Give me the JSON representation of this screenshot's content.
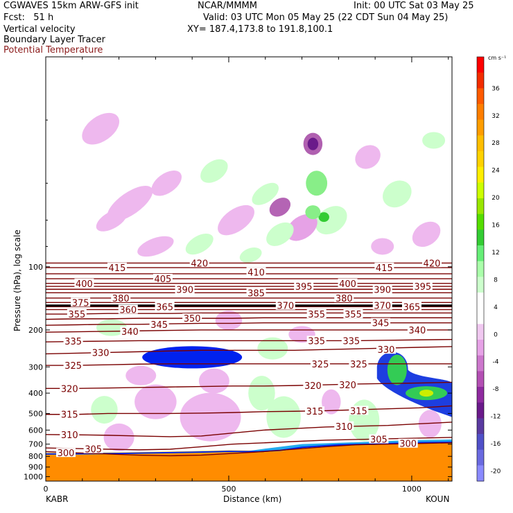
{
  "header": {
    "model": "CGWAVES 15km ARW-GFS init",
    "org": "NCAR/MMMM",
    "init": "Init: 00 UTC Sat 03 May 25",
    "fcst": "Fcst:   51 h",
    "valid": "Valid: 03 UTC Mon 05 May 25 (22 CDT Sun 04 May 25)",
    "field1": "Vertical velocity",
    "field2": "Boundary Layer Tracer",
    "field3": "Potential Temperature",
    "xy": "XY= 187.4,173.8 to 191.8,100.1"
  },
  "colors": {
    "theta_line": "#7a0000",
    "field3_text": "#8b1a1a",
    "tracer_orange": "#ff8c00",
    "tracer_blue": "#0022ee"
  },
  "chart_data": {
    "type": "heatmap",
    "title": "Vertical velocity / Boundary Layer Tracer / Potential Temperature cross-section",
    "xlabel": "Distance (km)",
    "ylabel": "Pressure (hPa), log scale",
    "xlim": [
      0,
      1110
    ],
    "ylim": [
      1050,
      10
    ],
    "y_scale": "log",
    "x_ticks": [
      0,
      500,
      1000
    ],
    "x_tick_labels": [
      "0",
      "500",
      "1000"
    ],
    "y_ticks": [
      100,
      200,
      300,
      400,
      500,
      600,
      700,
      800,
      900,
      1000
    ],
    "y_tick_labels": [
      "100",
      "200",
      "300",
      "400",
      "500",
      "600",
      "700",
      "800",
      "900",
      "1000"
    ],
    "endpoints": {
      "left": "KABR",
      "right": "KOUN"
    },
    "colorbar": {
      "units": "cm s⁻¹",
      "labels": [
        "36",
        "32",
        "28",
        "24",
        "20",
        "16",
        "12",
        "8",
        "4",
        "0",
        "-4",
        "-8",
        "-12",
        "-16",
        "-20"
      ],
      "colors": [
        "#ff0000",
        "#f22c00",
        "#ff5a00",
        "#ff7e00",
        "#ff9d00",
        "#ffbe00",
        "#ffd200",
        "#ffee00",
        "#ccff00",
        "#99e600",
        "#55dd00",
        "#33cc33",
        "#66ee77",
        "#aaffaa",
        "#ccffcc",
        "#ffffff",
        "#ffffff",
        "#f0c8f0",
        "#e6a2e6",
        "#cc77cc",
        "#b34fb3",
        "#8f2a9f",
        "#6a1a8a",
        "#5a3aa0",
        "#5050c8",
        "#6a6ae0",
        "#8a8aff"
      ]
    },
    "theta_contours": [
      {
        "label": "300",
        "p": [
          760,
          770,
          780,
          790,
          795,
          790,
          775,
          760,
          740,
          720,
          705,
          700,
          695,
          690
        ]
      },
      {
        "label": "305",
        "p": [
          730,
          735,
          740,
          745,
          740,
          720,
          700,
          690,
          680,
          670,
          665,
          660,
          655,
          650
        ]
      },
      {
        "label": "310",
        "p": [
          630,
          632,
          635,
          640,
          645,
          640,
          620,
          600,
          590,
          580,
          575,
          570,
          560,
          550
        ]
      },
      {
        "label": "315",
        "p": [
          505,
          505,
          500,
          500,
          500,
          498,
          495,
          490,
          488,
          485,
          480,
          475,
          470,
          460
        ]
      },
      {
        "label": "320",
        "p": [
          380,
          380,
          378,
          376,
          374,
          372,
          370,
          370,
          368,
          365,
          362,
          360,
          358,
          355
        ]
      },
      {
        "label": "325",
        "p": [
          295,
          295,
          293,
          291,
          290,
          290,
          290,
          290,
          290,
          290,
          290,
          290,
          290,
          290
        ]
      },
      {
        "label": "330",
        "p": [
          260,
          258,
          256,
          254,
          252,
          250,
          250,
          250,
          250,
          248,
          246,
          244,
          242,
          240
        ]
      },
      {
        "label": "335",
        "p": [
          228,
          227,
          226,
          225,
          225,
          225,
          225,
          225,
          225,
          225,
          225,
          224,
          223,
          222
        ]
      },
      {
        "label": "340",
        "p": [
          205,
          204,
          203,
          202,
          201,
          200,
          200,
          200,
          200,
          200,
          200,
          200,
          200,
          200
        ]
      },
      {
        "label": "345",
        "p": [
          190,
          189,
          188,
          188,
          187,
          186,
          186,
          185,
          185,
          185,
          185,
          185,
          185,
          185
        ]
      },
      {
        "label": "350",
        "p": [
          178,
          177,
          177,
          176,
          176,
          176,
          176,
          175,
          175,
          175,
          175,
          175,
          175,
          175
        ]
      },
      {
        "label": "355",
        "p": [
          168,
          168,
          167,
          167,
          167,
          166,
          166,
          166,
          166,
          166,
          166,
          166,
          166,
          166
        ]
      },
      {
        "label": "360",
        "p": [
          160,
          160,
          160,
          160,
          160,
          160,
          160,
          160,
          160,
          160,
          160,
          160,
          160,
          160
        ]
      },
      {
        "label": "365",
        "p": [
          155,
          155,
          155,
          155,
          155,
          155,
          155,
          155,
          155,
          155,
          155,
          155,
          155,
          155
        ]
      },
      {
        "label": "370",
        "p": [
          153,
          153,
          153,
          153,
          153,
          153,
          153,
          153,
          153,
          153,
          153,
          153,
          153,
          153
        ]
      },
      {
        "label": "375",
        "p": [
          148,
          148,
          148,
          148,
          148,
          148,
          148,
          148,
          148,
          148,
          148,
          148,
          148,
          148
        ]
      },
      {
        "label": "380",
        "p": [
          141,
          141,
          141,
          141,
          141,
          141,
          141,
          141,
          141,
          141,
          141,
          141,
          141,
          141
        ]
      },
      {
        "label": "385",
        "p": [
          133,
          133,
          133,
          133,
          133,
          133,
          133,
          133,
          133,
          133,
          133,
          133,
          133,
          133
        ]
      },
      {
        "label": "390",
        "p": [
          128,
          128,
          128,
          128,
          128,
          128,
          128,
          128,
          128,
          128,
          128,
          128,
          128,
          128
        ]
      },
      {
        "label": "395",
        "p": [
          124,
          124,
          124,
          124,
          124,
          124,
          124,
          124,
          124,
          124,
          124,
          124,
          124,
          124
        ]
      },
      {
        "label": "400",
        "p": [
          120,
          120,
          120,
          120,
          120,
          120,
          120,
          120,
          120,
          120,
          120,
          120,
          120,
          120
        ]
      },
      {
        "label": "405",
        "p": [
          114,
          114,
          114,
          114,
          114,
          114,
          114,
          114,
          114,
          114,
          114,
          114,
          114,
          114
        ]
      },
      {
        "label": "410",
        "p": [
          108,
          108,
          108,
          108,
          108,
          108,
          108,
          108,
          108,
          108,
          108,
          108,
          108,
          108
        ]
      },
      {
        "label": "415",
        "p": [
          101,
          101,
          101,
          101,
          101,
          101,
          101,
          101,
          101,
          101,
          101,
          101,
          101,
          101
        ]
      },
      {
        "label": "420",
        "p": [
          96,
          96,
          96,
          96,
          96,
          96,
          96,
          96,
          96,
          96,
          96,
          96,
          96,
          96
        ]
      }
    ],
    "theta_x": [
      0,
      85,
      170,
      255,
      340,
      425,
      510,
      595,
      680,
      765,
      850,
      935,
      1020,
      1110
    ],
    "theta_label_positions": [
      {
        "label": "420",
        "x": "420",
        "p": 96
      },
      {
        "label": "420",
        "x": 1055,
        "p": 96
      },
      {
        "label": "415",
        "x": 195,
        "p": 101
      },
      {
        "label": "415",
        "x": 925,
        "p": 101
      },
      {
        "label": "410",
        "x": 575,
        "p": 106
      },
      {
        "label": "405",
        "x": 320,
        "p": 114
      },
      {
        "label": "400",
        "x": 105,
        "p": 120
      },
      {
        "label": "400",
        "x": 825,
        "p": 120
      },
      {
        "label": "395",
        "x": 705,
        "p": 124
      },
      {
        "label": "395",
        "x": 1030,
        "p": 124
      },
      {
        "label": "390",
        "x": 380,
        "p": 128
      },
      {
        "label": "390",
        "x": 920,
        "p": 128
      },
      {
        "label": "385",
        "x": 575,
        "p": 133
      },
      {
        "label": "380",
        "x": 205,
        "p": 141
      },
      {
        "label": "380",
        "x": 815,
        "p": 141
      },
      {
        "label": "375",
        "x": 95,
        "p": 148
      },
      {
        "label": "370",
        "x": 655,
        "p": 153
      },
      {
        "label": "370",
        "x": 920,
        "p": 153
      },
      {
        "label": "365",
        "x": 325,
        "p": 155
      },
      {
        "label": "365",
        "x": 1000,
        "p": 155
      },
      {
        "label": "360",
        "x": 225,
        "p": 160
      },
      {
        "label": "355",
        "x": 85,
        "p": 168
      },
      {
        "label": "355",
        "x": 740,
        "p": 168
      },
      {
        "label": "355",
        "x": 840,
        "p": 168
      },
      {
        "label": "350",
        "x": 400,
        "p": 176
      },
      {
        "label": "345",
        "x": 310,
        "p": 188
      },
      {
        "label": "345",
        "x": 915,
        "p": 185
      },
      {
        "label": "340",
        "x": 230,
        "p": 203
      },
      {
        "label": "340",
        "x": 1015,
        "p": 200
      },
      {
        "label": "335",
        "x": 75,
        "p": 226
      },
      {
        "label": "335",
        "x": 740,
        "p": 225
      },
      {
        "label": "335",
        "x": 835,
        "p": 225
      },
      {
        "label": "330",
        "x": 150,
        "p": 256
      },
      {
        "label": "330",
        "x": 930,
        "p": 248
      },
      {
        "label": "325",
        "x": 75,
        "p": 295
      },
      {
        "label": "325",
        "x": 750,
        "p": 290
      },
      {
        "label": "325",
        "x": 855,
        "p": 290
      },
      {
        "label": "320",
        "x": 65,
        "p": 380
      },
      {
        "label": "320",
        "x": 730,
        "p": 368
      },
      {
        "label": "320",
        "x": 825,
        "p": 365
      },
      {
        "label": "315",
        "x": 65,
        "p": 505
      },
      {
        "label": "315",
        "x": 735,
        "p": 488
      },
      {
        "label": "315",
        "x": 855,
        "p": 485
      },
      {
        "label": "310",
        "x": 65,
        "p": 632
      },
      {
        "label": "310",
        "x": 815,
        "p": 575
      },
      {
        "label": "305",
        "x": 130,
        "p": 738
      },
      {
        "label": "305",
        "x": 910,
        "p": 663
      },
      {
        "label": "300",
        "x": 55,
        "p": 770
      },
      {
        "label": "300",
        "x": 990,
        "p": 695
      }
    ],
    "tracer_surface": {
      "x": [
        0,
        100,
        200,
        300,
        400,
        500,
        580,
        640,
        700,
        800,
        900,
        1000,
        1110
      ],
      "top_p": [
        780,
        778,
        775,
        770,
        765,
        758,
        760,
        750,
        725,
        705,
        700,
        690,
        685
      ]
    }
  }
}
